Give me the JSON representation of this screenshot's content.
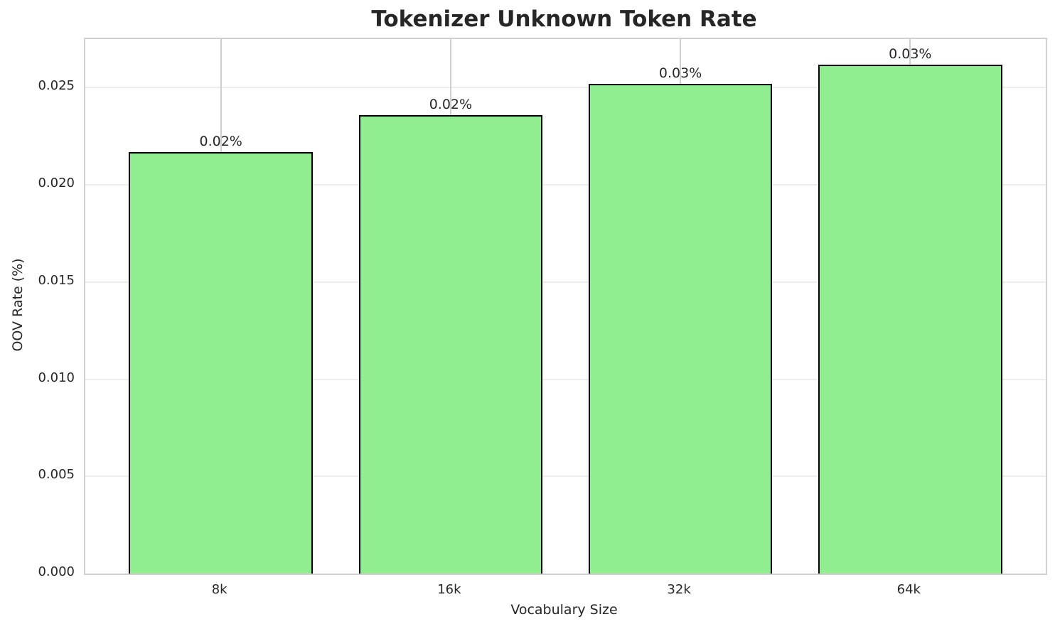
{
  "chart_data": {
    "type": "bar",
    "title": "Tokenizer Unknown Token Rate",
    "xlabel": "Vocabulary Size",
    "ylabel": "OOV Rate (%)",
    "categories": [
      "8k",
      "16k",
      "32k",
      "64k"
    ],
    "values": [
      0.0217,
      0.0236,
      0.0252,
      0.0262
    ],
    "bar_labels": [
      "0.02%",
      "0.02%",
      "0.03%",
      "0.03%"
    ],
    "yticks": [
      {
        "value": 0.0,
        "label": "0.000"
      },
      {
        "value": 0.005,
        "label": "0.005"
      },
      {
        "value": 0.01,
        "label": "0.010"
      },
      {
        "value": 0.015,
        "label": "0.015"
      },
      {
        "value": 0.02,
        "label": "0.020"
      },
      {
        "value": 0.025,
        "label": "0.025"
      }
    ],
    "ylim": [
      0,
      0.0275
    ],
    "grid": true,
    "legend": "none",
    "colors": {
      "bar_fill": "#90EE90",
      "bar_edge": "#000000",
      "hgrid": "#ededed",
      "vgrid": "#cfcfcf",
      "spine": "#d0d0d0",
      "text": "#262626"
    }
  }
}
